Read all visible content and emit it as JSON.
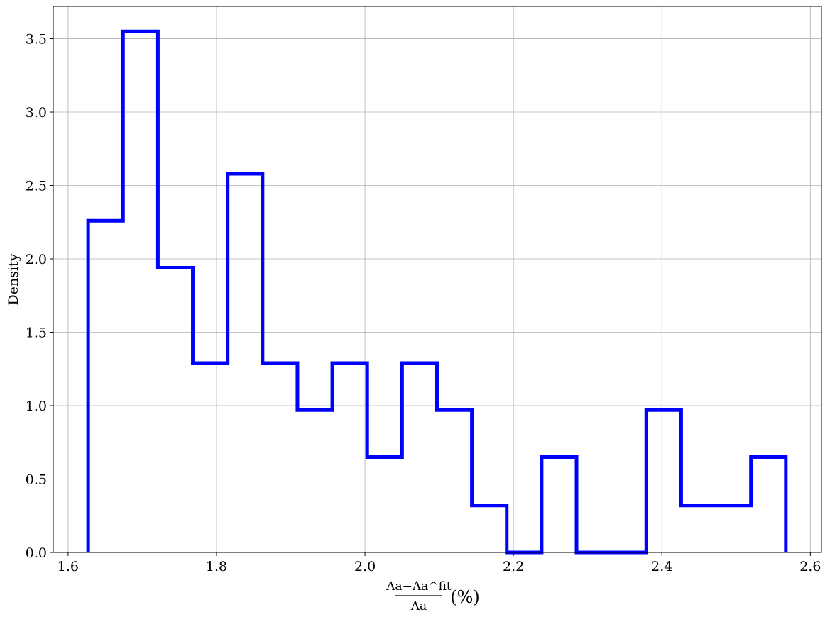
{
  "chart_data": {
    "type": "histogram",
    "histtype": "step",
    "color": "#0000ff",
    "grid": true,
    "ylabel": "Density",
    "xlabel": {
      "numerator": "Λa−Λa^fit",
      "denominator": "Λa",
      "unit": "(%)"
    },
    "xlim": [
      1.58,
      2.615
    ],
    "ylim": [
      0,
      3.72
    ],
    "xticks": [
      1.6,
      1.8,
      2.0,
      2.2,
      2.4,
      2.6
    ],
    "xtick_labels": [
      "1.6",
      "1.8",
      "2.0",
      "2.2",
      "2.4",
      "2.6"
    ],
    "yticks": [
      0.0,
      0.5,
      1.0,
      1.5,
      2.0,
      2.5,
      3.0,
      3.5
    ],
    "ytick_labels": [
      "0.0",
      "0.5",
      "1.0",
      "1.5",
      "2.0",
      "2.5",
      "3.0",
      "3.5"
    ],
    "bin_edges": [
      1.627,
      1.674,
      1.721,
      1.768,
      1.815,
      1.862,
      1.909,
      1.956,
      2.003,
      2.05,
      2.097,
      2.144,
      2.191,
      2.238,
      2.285,
      2.332,
      2.379,
      2.426,
      2.473,
      2.52,
      2.567
    ],
    "values": [
      2.26,
      3.55,
      1.94,
      1.29,
      2.58,
      1.29,
      0.97,
      1.29,
      0.65,
      1.29,
      0.97,
      0.32,
      0.0,
      0.65,
      0.0,
      0.0,
      0.97,
      0.32,
      0.32,
      0.65
    ]
  }
}
